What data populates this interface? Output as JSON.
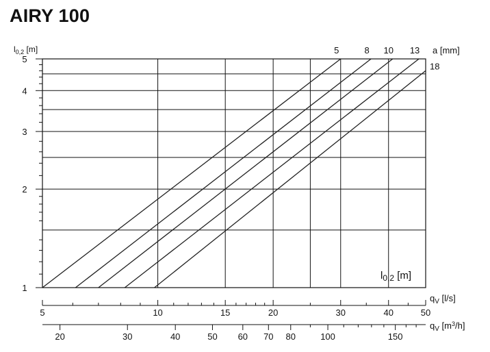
{
  "title": "AIRY 100",
  "chart_data": {
    "type": "line",
    "title": "AIRY 100",
    "x_scale": "log",
    "y_scale": "log",
    "xlim": [
      5,
      50
    ],
    "ylim": [
      1,
      5
    ],
    "xlabel": "qV [l/s]",
    "x2label": "qV [m3/h]",
    "ylabel": "l0,2 [m]",
    "inner_label": "l0,2 [m]",
    "series_label": "a [mm]",
    "x_ticks": [
      5,
      10,
      15,
      20,
      30,
      40,
      50
    ],
    "x2_ticks": [
      20,
      30,
      40,
      50,
      60,
      70,
      80,
      100,
      150
    ],
    "y_ticks": [
      1,
      2,
      3,
      4,
      5
    ],
    "grid": true,
    "series": [
      {
        "name": "5",
        "x": [
          5,
          30.0
        ],
        "y": [
          1,
          5
        ]
      },
      {
        "name": "8",
        "x": [
          6.1,
          36.0
        ],
        "y": [
          1,
          5
        ]
      },
      {
        "name": "10",
        "x": [
          7.0,
          41.0
        ],
        "y": [
          1,
          5
        ]
      },
      {
        "name": "13",
        "x": [
          8.2,
          48.0
        ],
        "y": [
          1,
          5
        ]
      },
      {
        "name": "18",
        "x": [
          9.8,
          50.0
        ],
        "y": [
          1,
          4.6
        ]
      }
    ]
  }
}
